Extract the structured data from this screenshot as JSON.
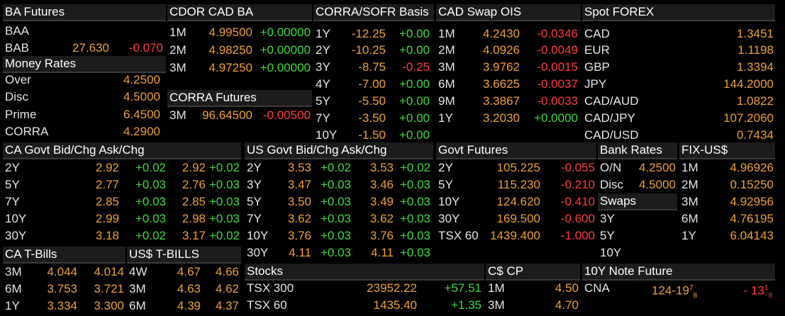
{
  "colors": {
    "label": "#e6e6e6",
    "value": "#f0a030",
    "positive": "#3ddc3d",
    "negative": "#ff3b3b",
    "header_bg": "#1c1c1c"
  },
  "ba_futures": {
    "title": "BA Futures",
    "rows": [
      {
        "label": "BAA",
        "value": "",
        "change": ""
      },
      {
        "label": "BAB",
        "value": "27.630",
        "change": "-0.070"
      }
    ]
  },
  "money_rates": {
    "title": "Money Rates",
    "rows": [
      {
        "label": "Over",
        "value": "4.2500"
      },
      {
        "label": "Disc",
        "value": "4.5000"
      },
      {
        "label": "Prime",
        "value": "6.4500"
      },
      {
        "label": "CORRA",
        "value": "4.2900"
      }
    ]
  },
  "cdor": {
    "title": "CDOR CAD BA",
    "rows": [
      {
        "label": "1M",
        "value": "4.99500",
        "change": "+0.00000"
      },
      {
        "label": "2M",
        "value": "4.98250",
        "change": "+0.00000"
      },
      {
        "label": "3M",
        "value": "4.97250",
        "change": "+0.00000"
      }
    ]
  },
  "corra_futures": {
    "title": "CORRA Futures",
    "rows": [
      {
        "label": "3M",
        "value": "96.64500",
        "change": "-0.00500"
      }
    ]
  },
  "corra_sofr": {
    "title": "CORRA/SOFR Basis",
    "rows": [
      {
        "label": "1Y",
        "value": "-12.25",
        "change": "+0.00"
      },
      {
        "label": "2Y",
        "value": "-10.25",
        "change": "+0.00"
      },
      {
        "label": "3Y",
        "value": "-8.75",
        "change": "-0.25"
      },
      {
        "label": "4Y",
        "value": "-7.00",
        "change": "+0.00"
      },
      {
        "label": "5Y",
        "value": "-5.50",
        "change": "+0.00"
      },
      {
        "label": "7Y",
        "value": "-3.50",
        "change": "+0.00"
      },
      {
        "label": "10Y",
        "value": "-1.50",
        "change": "+0.00"
      }
    ]
  },
  "cad_swap": {
    "title": "CAD Swap OIS",
    "rows": [
      {
        "label": "1M",
        "value": "4.2430",
        "change": "-0.0346"
      },
      {
        "label": "2M",
        "value": "4.0926",
        "change": "-0.0049"
      },
      {
        "label": "3M",
        "value": "3.9762",
        "change": "-0.0015"
      },
      {
        "label": "6M",
        "value": "3.6625",
        "change": "-0.0037"
      },
      {
        "label": "9M",
        "value": "3.3867",
        "change": "-0.0033"
      },
      {
        "label": "1Y",
        "value": "3.2030",
        "change": "+0.0000"
      }
    ]
  },
  "spot_forex": {
    "title": "Spot FOREX",
    "rows": [
      {
        "label": "CAD",
        "value": "1.3451"
      },
      {
        "label": "EUR",
        "value": "1.1198"
      },
      {
        "label": "GBP",
        "value": "1.3394"
      },
      {
        "label": "JPY",
        "value": "144.2000"
      },
      {
        "label": "CAD/AUD",
        "value": "1.0822"
      },
      {
        "label": "CAD/JPY",
        "value": "107.2060"
      },
      {
        "label": "CAD/USD",
        "value": "0.7434"
      }
    ]
  },
  "ca_govt": {
    "title": "CA Govt Bid/Chg Ask/Chg",
    "rows": [
      {
        "label": "2Y",
        "bid": "2.92",
        "bid_chg": "+0.02",
        "ask": "2.92",
        "ask_chg": "+0.02"
      },
      {
        "label": "5Y",
        "bid": "2.77",
        "bid_chg": "+0.03",
        "ask": "2.76",
        "ask_chg": "+0.03"
      },
      {
        "label": "7Y",
        "bid": "2.85",
        "bid_chg": "+0.03",
        "ask": "2.85",
        "ask_chg": "+0.03"
      },
      {
        "label": "10Y",
        "bid": "2.99",
        "bid_chg": "+0.03",
        "ask": "2.98",
        "ask_chg": "+0.03"
      },
      {
        "label": "30Y",
        "bid": "3.18",
        "bid_chg": "+0.02",
        "ask": "3.17",
        "ask_chg": "+0.02"
      }
    ]
  },
  "us_govt": {
    "title": "US Govt Bid/Chg Ask/Chg",
    "rows": [
      {
        "label": "2Y",
        "bid": "3.53",
        "bid_chg": "+0.02",
        "ask": "3.53",
        "ask_chg": "+0.02"
      },
      {
        "label": "3Y",
        "bid": "3.47",
        "bid_chg": "+0.03",
        "ask": "3.46",
        "ask_chg": "+0.03"
      },
      {
        "label": "5Y",
        "bid": "3.50",
        "bid_chg": "+0.03",
        "ask": "3.49",
        "ask_chg": "+0.03"
      },
      {
        "label": "7Y",
        "bid": "3.62",
        "bid_chg": "+0.03",
        "ask": "3.62",
        "ask_chg": "+0.03"
      },
      {
        "label": "10Y",
        "bid": "3.76",
        "bid_chg": "+0.03",
        "ask": "3.76",
        "ask_chg": "+0.03"
      },
      {
        "label": "30Y",
        "bid": "4.11",
        "bid_chg": "+0.03",
        "ask": "4.11",
        "ask_chg": "+0.03"
      }
    ]
  },
  "govt_futures": {
    "title": "Govt Futures",
    "rows": [
      {
        "label": "2Y",
        "value": "105.225",
        "change": "-0.055"
      },
      {
        "label": "5Y",
        "value": "115.230",
        "change": "-0.210"
      },
      {
        "label": "10Y",
        "value": "124.620",
        "change": "-0.410"
      },
      {
        "label": "30Y",
        "value": "169.500",
        "change": "-0.600"
      },
      {
        "label": "TSX 60",
        "value": "1439.400",
        "change": "-1.000"
      }
    ]
  },
  "bank_rates": {
    "title": "Bank Rates",
    "rows": [
      {
        "label": "O/N",
        "value": "4.2500"
      },
      {
        "label": "Disc",
        "value": "4.5000"
      }
    ]
  },
  "swaps": {
    "title": "Swaps",
    "rows": [
      {
        "label": "3Y"
      },
      {
        "label": "5Y"
      },
      {
        "label": "10Y"
      }
    ]
  },
  "fix_us": {
    "title": "FIX-US$",
    "rows": [
      {
        "label": "1M",
        "value": "4.96926"
      },
      {
        "label": "2M",
        "value": "0.15250"
      },
      {
        "label": "3M",
        "value": "4.92956"
      },
      {
        "label": "6M",
        "value": "4.76195"
      },
      {
        "label": "1Y",
        "value": "6.04143"
      }
    ]
  },
  "ca_tbills": {
    "title": "CA T-Bills",
    "rows": [
      {
        "label": "3M",
        "bid": "4.044",
        "ask": "4.014"
      },
      {
        "label": "6M",
        "bid": "3.753",
        "ask": "3.721"
      },
      {
        "label": "1Y",
        "bid": "3.334",
        "ask": "3.300"
      }
    ]
  },
  "us_tbills": {
    "title": "US$ T-BILLS",
    "rows": [
      {
        "label": "4W",
        "bid": "4.67",
        "ask": "4.66"
      },
      {
        "label": "3M",
        "bid": "4.63",
        "ask": "4.62"
      },
      {
        "label": "6M",
        "bid": "4.39",
        "ask": "4.37"
      }
    ]
  },
  "stocks": {
    "title": "Stocks",
    "rows": [
      {
        "label": "TSX 300",
        "value": "23952.22",
        "change": "+57.51"
      },
      {
        "label": "TSX 60",
        "value": "1435.40",
        "change": "+1.35"
      }
    ]
  },
  "cs_cp": {
    "title": "C$ CP",
    "rows": [
      {
        "label": "1M",
        "value": "4.50"
      },
      {
        "label": "3M",
        "value": "4.70"
      }
    ]
  },
  "note_future": {
    "title": "10Y Note Future",
    "row": {
      "label": "CNA",
      "value_main": "124-19",
      "value_frac_num": "7",
      "value_frac_den": "8",
      "change_main": "- 13",
      "change_frac_num": "1",
      "change_frac_den": "8"
    }
  }
}
